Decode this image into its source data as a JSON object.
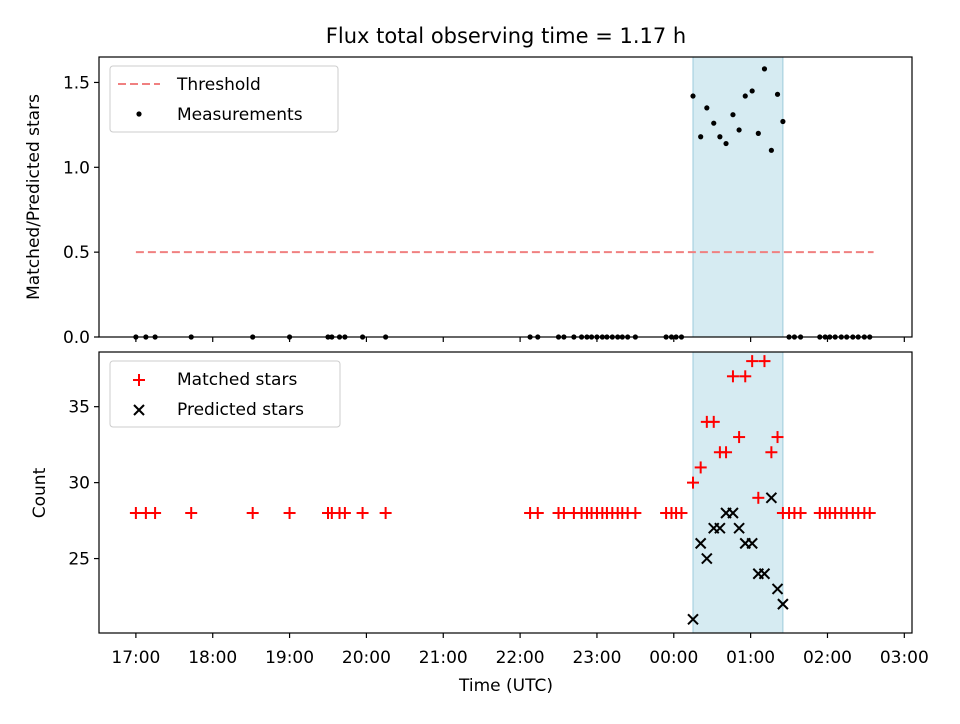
{
  "chart_data": {
    "type": "scatter",
    "title": "Flux total observing time = 1.17 h",
    "xlabel": "Time (UTC)",
    "x_tick_labels": [
      "17:00",
      "18:00",
      "19:00",
      "20:00",
      "21:00",
      "22:00",
      "23:00",
      "00:00",
      "01:00",
      "02:00",
      "03:00"
    ],
    "x_unit": "hours since 17:00 UTC",
    "xlim": [
      -0.48,
      10.1
    ],
    "highlight_span": [
      7.25,
      8.42
    ],
    "top": {
      "ylabel": "Matched/Predicted stars",
      "ylim": [
        0,
        1.65
      ],
      "y_ticks": [
        0,
        0.5,
        1.0,
        1.5
      ],
      "y_tick_labels": [
        "0.0",
        "0.5",
        "1.0",
        "1.5"
      ],
      "legend": [
        "Threshold",
        "Measurements"
      ],
      "threshold": {
        "value": 0.5,
        "x_range": [
          0.0,
          9.6
        ],
        "color": "#f08080"
      },
      "measurements": [
        [
          0.0,
          0
        ],
        [
          0.13,
          0
        ],
        [
          0.25,
          0
        ],
        [
          0.72,
          0
        ],
        [
          1.52,
          0
        ],
        [
          2.0,
          0
        ],
        [
          2.5,
          0
        ],
        [
          2.55,
          0
        ],
        [
          2.65,
          0
        ],
        [
          2.72,
          0
        ],
        [
          2.95,
          0
        ],
        [
          3.25,
          0
        ],
        [
          5.13,
          0
        ],
        [
          5.23,
          0
        ],
        [
          5.5,
          0
        ],
        [
          5.57,
          0
        ],
        [
          5.7,
          0
        ],
        [
          5.8,
          0
        ],
        [
          5.87,
          0
        ],
        [
          5.93,
          0
        ],
        [
          6.0,
          0
        ],
        [
          6.07,
          0
        ],
        [
          6.13,
          0
        ],
        [
          6.2,
          0
        ],
        [
          6.27,
          0
        ],
        [
          6.33,
          0
        ],
        [
          6.4,
          0
        ],
        [
          6.5,
          0
        ],
        [
          6.9,
          0
        ],
        [
          6.97,
          0
        ],
        [
          7.03,
          0
        ],
        [
          7.1,
          0
        ],
        [
          7.25,
          1.42
        ],
        [
          7.35,
          1.18
        ],
        [
          7.43,
          1.35
        ],
        [
          7.52,
          1.26
        ],
        [
          7.6,
          1.18
        ],
        [
          7.68,
          1.14
        ],
        [
          7.77,
          1.31
        ],
        [
          7.85,
          1.22
        ],
        [
          7.93,
          1.42
        ],
        [
          8.02,
          1.45
        ],
        [
          8.1,
          1.2
        ],
        [
          8.18,
          1.58
        ],
        [
          8.27,
          1.1
        ],
        [
          8.35,
          1.43
        ],
        [
          8.42,
          1.27
        ],
        [
          8.5,
          0
        ],
        [
          8.57,
          0
        ],
        [
          8.65,
          0
        ],
        [
          8.9,
          0
        ],
        [
          8.97,
          0
        ],
        [
          9.03,
          0
        ],
        [
          9.1,
          0
        ],
        [
          9.18,
          0
        ],
        [
          9.25,
          0
        ],
        [
          9.33,
          0
        ],
        [
          9.4,
          0
        ],
        [
          9.48,
          0
        ],
        [
          9.55,
          0
        ]
      ]
    },
    "bottom": {
      "ylabel": "Count",
      "ylim": [
        20.1,
        38.6
      ],
      "y_ticks": [
        25,
        30,
        35
      ],
      "y_tick_labels": [
        "25",
        "30",
        "35"
      ],
      "legend": [
        "Matched stars",
        "Predicted stars"
      ],
      "series": [
        {
          "name": "Matched stars",
          "marker": "+",
          "color": "#ff0000",
          "points": [
            [
              0.0,
              28
            ],
            [
              0.13,
              28
            ],
            [
              0.25,
              28
            ],
            [
              0.72,
              28
            ],
            [
              1.52,
              28
            ],
            [
              2.0,
              28
            ],
            [
              2.5,
              28
            ],
            [
              2.55,
              28
            ],
            [
              2.65,
              28
            ],
            [
              2.72,
              28
            ],
            [
              2.95,
              28
            ],
            [
              3.25,
              28
            ],
            [
              5.13,
              28
            ],
            [
              5.23,
              28
            ],
            [
              5.5,
              28
            ],
            [
              5.57,
              28
            ],
            [
              5.7,
              28
            ],
            [
              5.8,
              28
            ],
            [
              5.87,
              28
            ],
            [
              5.93,
              28
            ],
            [
              6.0,
              28
            ],
            [
              6.07,
              28
            ],
            [
              6.13,
              28
            ],
            [
              6.2,
              28
            ],
            [
              6.27,
              28
            ],
            [
              6.33,
              28
            ],
            [
              6.4,
              28
            ],
            [
              6.5,
              28
            ],
            [
              6.9,
              28
            ],
            [
              6.97,
              28
            ],
            [
              7.03,
              28
            ],
            [
              7.1,
              28
            ],
            [
              7.25,
              30
            ],
            [
              7.35,
              31
            ],
            [
              7.43,
              34
            ],
            [
              7.52,
              34
            ],
            [
              7.6,
              32
            ],
            [
              7.68,
              32
            ],
            [
              7.77,
              37
            ],
            [
              7.85,
              33
            ],
            [
              7.93,
              37
            ],
            [
              8.02,
              38
            ],
            [
              8.1,
              29
            ],
            [
              8.18,
              38
            ],
            [
              8.27,
              32
            ],
            [
              8.35,
              33
            ],
            [
              8.42,
              28
            ],
            [
              8.5,
              28
            ],
            [
              8.57,
              28
            ],
            [
              8.65,
              28
            ],
            [
              8.9,
              28
            ],
            [
              8.97,
              28
            ],
            [
              9.03,
              28
            ],
            [
              9.1,
              28
            ],
            [
              9.18,
              28
            ],
            [
              9.25,
              28
            ],
            [
              9.33,
              28
            ],
            [
              9.4,
              28
            ],
            [
              9.48,
              28
            ],
            [
              9.55,
              28
            ]
          ]
        },
        {
          "name": "Predicted stars",
          "marker": "x",
          "color": "#000000",
          "points": [
            [
              7.25,
              21
            ],
            [
              7.35,
              26
            ],
            [
              7.43,
              25
            ],
            [
              7.52,
              27
            ],
            [
              7.6,
              27
            ],
            [
              7.68,
              28
            ],
            [
              7.77,
              28
            ],
            [
              7.85,
              27
            ],
            [
              7.93,
              26
            ],
            [
              8.02,
              26
            ],
            [
              8.1,
              24
            ],
            [
              8.18,
              24
            ],
            [
              8.27,
              29
            ],
            [
              8.35,
              23
            ],
            [
              8.42,
              22
            ]
          ]
        }
      ]
    }
  }
}
